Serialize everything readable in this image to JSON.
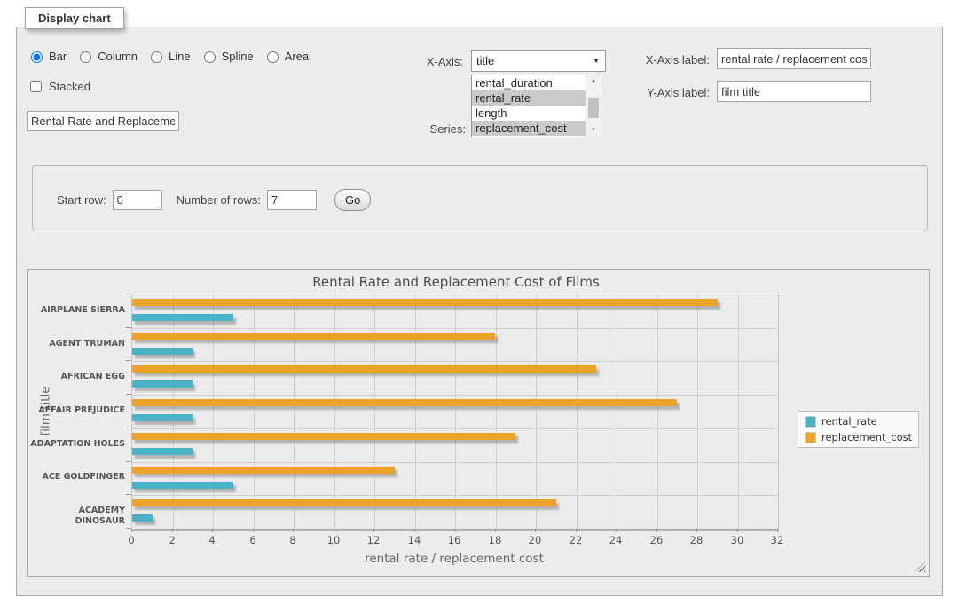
{
  "fieldset": {
    "legend_title": "Display chart"
  },
  "form": {
    "chart_types": [
      {
        "label": "Bar",
        "checked": true
      },
      {
        "label": "Column",
        "checked": false
      },
      {
        "label": "Line",
        "checked": false
      },
      {
        "label": "Spline",
        "checked": false
      },
      {
        "label": "Area",
        "checked": false
      }
    ],
    "stacked_label": "Stacked",
    "stacked_checked": false,
    "chart_title_input_value": "Rental Rate and Replacemer",
    "x_axis": {
      "label": "X-Axis:",
      "selected_option": "title"
    },
    "series": {
      "label": "Series:",
      "options": [
        {
          "label": "rental_duration",
          "selected": false
        },
        {
          "label": "rental_rate",
          "selected": true
        },
        {
          "label": "length",
          "selected": false
        },
        {
          "label": "replacement_cost",
          "selected": true
        }
      ]
    },
    "x_axis_label_field": {
      "label": "X-Axis label:",
      "value": "rental rate / replacement cost"
    },
    "y_axis_label_field": {
      "label": "Y-Axis label:",
      "value": "film title"
    }
  },
  "rows_panel": {
    "start_row_label": "Start row:",
    "start_row_value": "0",
    "num_rows_label": "Number of rows:",
    "num_rows_value": "7",
    "go_label": "Go"
  },
  "chart_data": {
    "type": "bar",
    "orientation": "horizontal",
    "title": "Rental Rate and Replacement Cost of Films",
    "xlabel": "rental rate / replacement cost",
    "ylabel": "film title",
    "xlim": [
      0,
      32
    ],
    "xtick_step": 2,
    "grid": true,
    "legend_position": "right",
    "categories_top_to_bottom": [
      "AIRPLANE SIERRA",
      "AGENT TRUMAN",
      "AFRICAN EGG",
      "AFFAIR PREJUDICE",
      "ADAPTATION HOLES",
      "ACE GOLDFINGER",
      "ACADEMY DINOSAUR"
    ],
    "series": [
      {
        "name": "rental_rate",
        "color": "#4bb2c5",
        "values": [
          4.99,
          2.99,
          2.99,
          2.99,
          2.99,
          4.99,
          0.99
        ]
      },
      {
        "name": "replacement_cost",
        "color": "#eaa228",
        "values": [
          28.99,
          17.99,
          22.99,
          26.99,
          18.99,
          12.99,
          20.99
        ]
      }
    ]
  }
}
